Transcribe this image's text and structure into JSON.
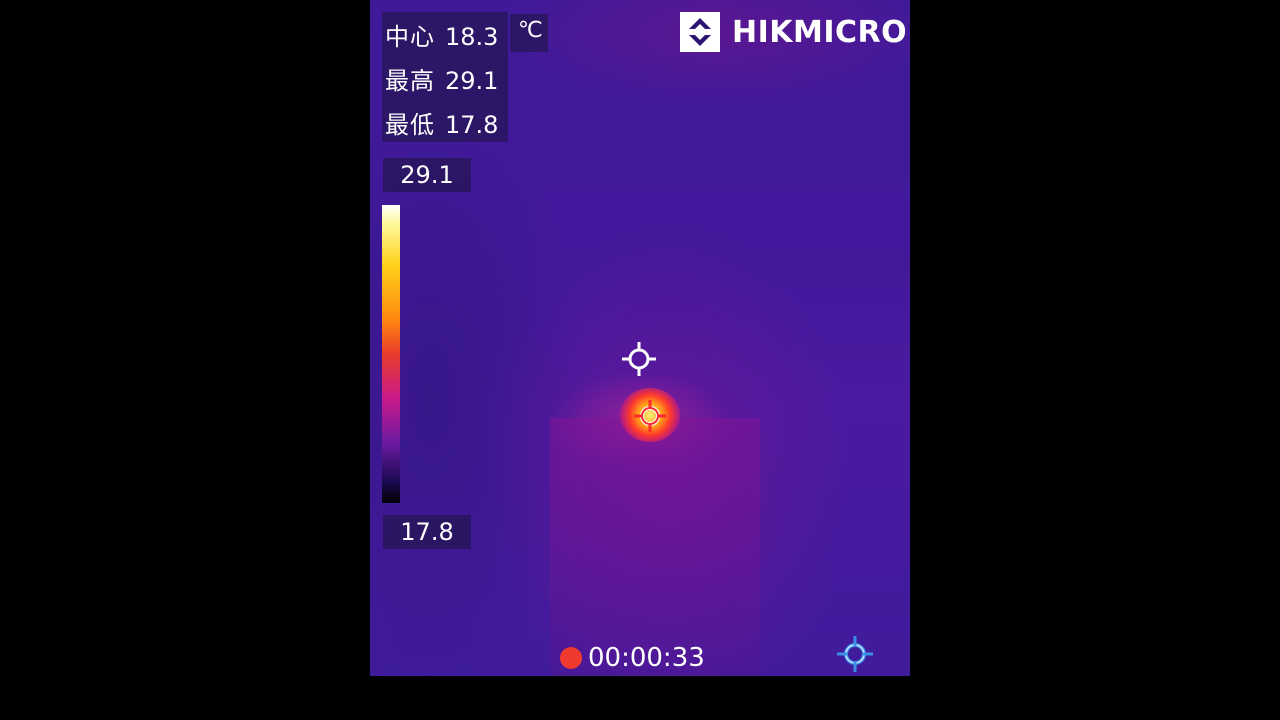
{
  "readouts": {
    "center_label": "中心",
    "center_value": "18.3",
    "unit": "℃",
    "max_label": "最高",
    "max_value": "29.1",
    "min_label": "最低",
    "min_value": "17.8"
  },
  "brand": {
    "name": "HIKMICRO",
    "icon": "hikmicro-logo-icon"
  },
  "scale": {
    "max": "29.1",
    "min": "17.8",
    "palette": "ironbow"
  },
  "recording": {
    "time": "00:00:33",
    "indicator_color": "#ef3b2f"
  },
  "icons": {
    "center": "crosshair-icon",
    "max_spot": "hot-spot-crosshair-icon",
    "target": "target-crosshair-icon"
  },
  "colors": {
    "accent_blue": "#3b8ee8",
    "max_marker": "#ff2a2a",
    "background": "#000000"
  }
}
